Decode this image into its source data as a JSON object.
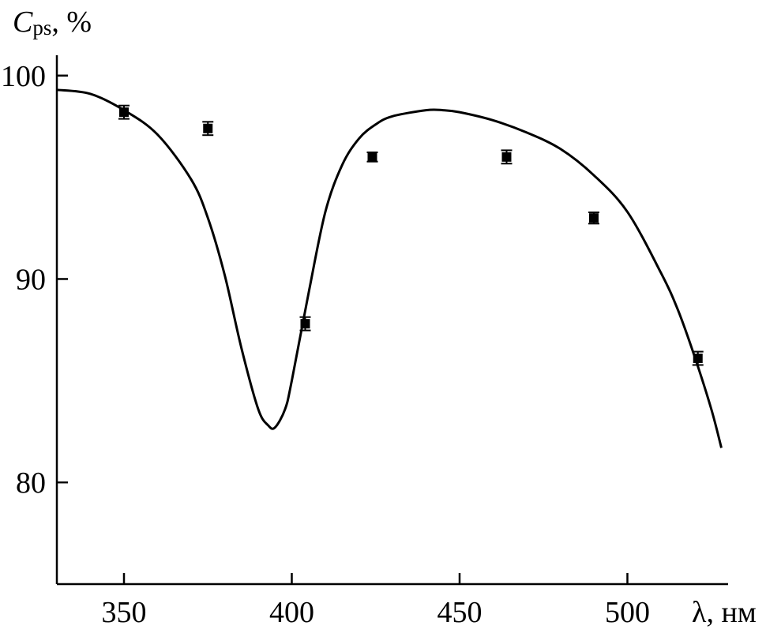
{
  "chart_data": {
    "type": "scatter",
    "title": "",
    "ylabel_main": "C",
    "ylabel_sub": "ps",
    "ylabel_unit": ", %",
    "xlabel_symbol": "λ",
    "xlabel_unit": ", нм",
    "xlim": [
      330,
      530
    ],
    "ylim": [
      75,
      101
    ],
    "xticks": [
      350,
      400,
      450,
      500
    ],
    "yticks": [
      80,
      90,
      100
    ],
    "grid": false,
    "series": [
      {
        "kind": "points",
        "x": [
          350,
          375,
          404,
          424,
          464,
          490,
          521
        ],
        "y": [
          98.2,
          97.4,
          87.8,
          96.0,
          96.0,
          93.0,
          86.1
        ],
        "err": [
          0.25,
          0.25,
          0.25,
          0.15,
          0.25,
          0.2,
          0.25
        ]
      },
      {
        "kind": "curve",
        "x": [
          330,
          340,
          350,
          360,
          370,
          375,
          380,
          385,
          390,
          393,
          395,
          398,
          400,
          405,
          410,
          415,
          420,
          425,
          430,
          440,
          445,
          450,
          460,
          470,
          480,
          490,
          500,
          510,
          515,
          520,
          525,
          528
        ],
        "y": [
          99.3,
          99.1,
          98.3,
          97.1,
          94.9,
          93.0,
          90.2,
          86.6,
          83.6,
          82.8,
          82.7,
          83.6,
          85.0,
          89.3,
          93.3,
          95.6,
          96.9,
          97.6,
          98.0,
          98.3,
          98.3,
          98.2,
          97.8,
          97.2,
          96.4,
          95.1,
          93.3,
          90.3,
          88.5,
          86.2,
          83.6,
          81.7
        ]
      }
    ]
  }
}
